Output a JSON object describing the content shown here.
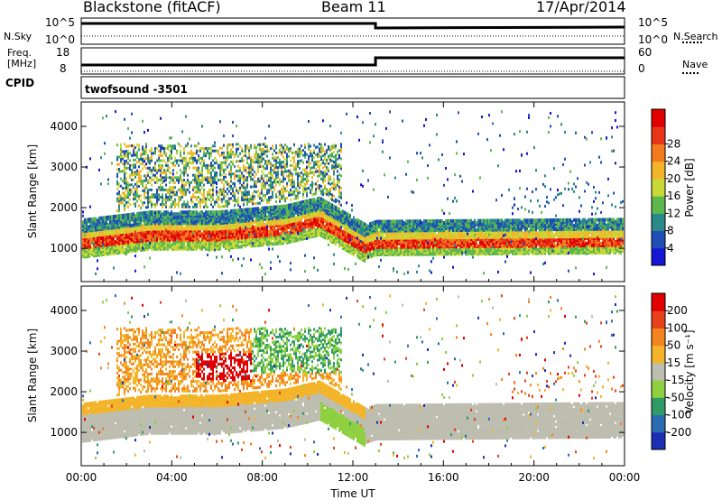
{
  "header": {
    "station": "Blackstone (fitACF)",
    "beam": "Beam 11",
    "date": "17/Apr/2014"
  },
  "strip_panels": {
    "nsky": {
      "left_label": "N.Sky",
      "left_ticks": [
        "10^5",
        "10^0"
      ],
      "right_label": "N.Search",
      "right_ticks": [
        "10^5",
        "10^0"
      ]
    },
    "freq": {
      "left_label_line1": "Freq.",
      "left_label_line2": "[MHz]",
      "left_ticks": [
        "18",
        "8"
      ],
      "right_label": "Nave",
      "right_ticks": [
        "60",
        "0"
      ]
    },
    "cpid": {
      "left_label": "CPID",
      "program": "twofsound -3501"
    }
  },
  "chart_data": [
    {
      "type": "heatmap",
      "title": "",
      "xlabel": "Time UT",
      "ylabel": "Slant Range [km]",
      "x_ticks": [
        "00:00",
        "04:00",
        "08:00",
        "12:00",
        "16:00",
        "20:00",
        "00:00"
      ],
      "x_range_hours": [
        0,
        24
      ],
      "y_ticks": [
        "1000",
        "2000",
        "3000",
        "4000"
      ],
      "ylim": [
        180,
        4600
      ],
      "colorbar": {
        "label": "Power [dB]",
        "ticks": [
          "4",
          "8",
          "12",
          "16",
          "20",
          "24",
          "28"
        ],
        "colors": [
          "#1515d6",
          "#1f4fb4",
          "#2a8a8a",
          "#5cb84d",
          "#c8d836",
          "#f4b42a",
          "#f47a1e",
          "#e83418",
          "#e00000"
        ]
      },
      "approx_main_echo_band_km": [
        {
          "time_h": 0,
          "center": 1150
        },
        {
          "time_h": 3,
          "center": 1350
        },
        {
          "time_h": 6,
          "center": 1350
        },
        {
          "time_h": 9,
          "center": 1500
        },
        {
          "time_h": 10.5,
          "center": 1700
        },
        {
          "time_h": 12.5,
          "center": 1050
        },
        {
          "time_h": 13,
          "center": 1150
        },
        {
          "time_h": 24,
          "center": 1200
        }
      ]
    },
    {
      "type": "heatmap",
      "title": "",
      "xlabel": "Time UT",
      "ylabel": "Slant Range [km]",
      "x_ticks": [
        "00:00",
        "04:00",
        "08:00",
        "12:00",
        "16:00",
        "20:00",
        "00:00"
      ],
      "x_range_hours": [
        0,
        24
      ],
      "y_ticks": [
        "1000",
        "2000",
        "3000",
        "4000"
      ],
      "ylim": [
        180,
        4600
      ],
      "colorbar": {
        "label": "Velocity [m s⁻¹]",
        "ticks": [
          "200",
          "100",
          "50",
          "15",
          "-15",
          "-50",
          "-100",
          "-200"
        ],
        "colors": [
          "#1c2eb4",
          "#2a6cb0",
          "#2e9a66",
          "#8ed040",
          "#bdbdb0",
          "#f4b42a",
          "#f4841e",
          "#e8401a",
          "#e00000"
        ]
      }
    }
  ]
}
